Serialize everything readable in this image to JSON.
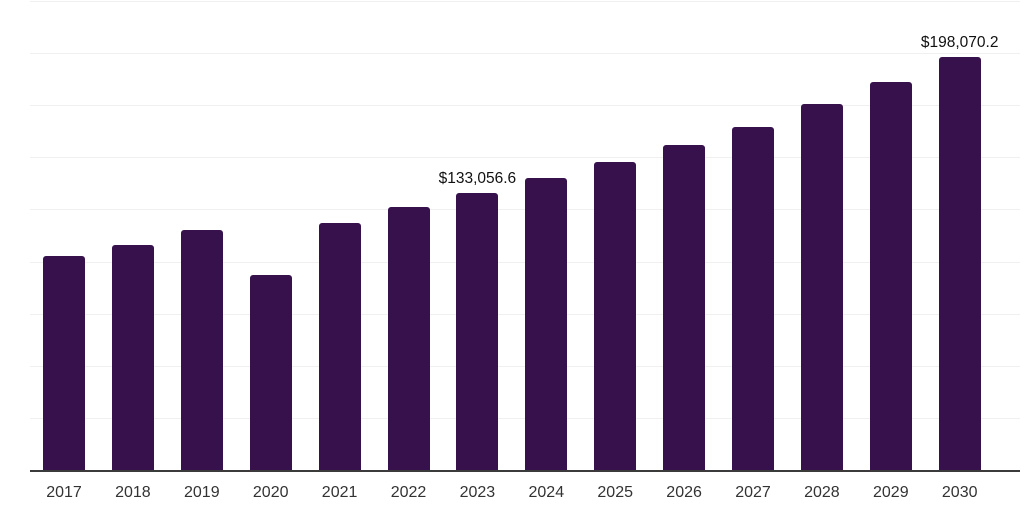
{
  "chart_data": {
    "type": "bar",
    "title": "",
    "xlabel": "",
    "ylabel": "",
    "legend": "none",
    "grid": "horizontal",
    "ylim": [
      0,
      225000
    ],
    "gridline_step": 25000,
    "categories": [
      "2017",
      "2018",
      "2019",
      "2020",
      "2021",
      "2022",
      "2023",
      "2024",
      "2025",
      "2026",
      "2027",
      "2028",
      "2029",
      "2030"
    ],
    "values": [
      102700,
      108100,
      114900,
      93400,
      118500,
      126400,
      133056.6,
      140300,
      147700,
      156000,
      164700,
      175400,
      186000,
      198070.2
    ],
    "data_labels": [
      "",
      "",
      "",
      "",
      "",
      "",
      "$133,056.6",
      "",
      "",
      "",
      "",
      "",
      "",
      "$198,070.2"
    ],
    "colors": {
      "bar": "#36114C",
      "axis_line": "#3b3b3b",
      "gridline": "#f0f0f0",
      "x_label": "#333333",
      "value_label": "#111111",
      "background": "#ffffff"
    }
  }
}
